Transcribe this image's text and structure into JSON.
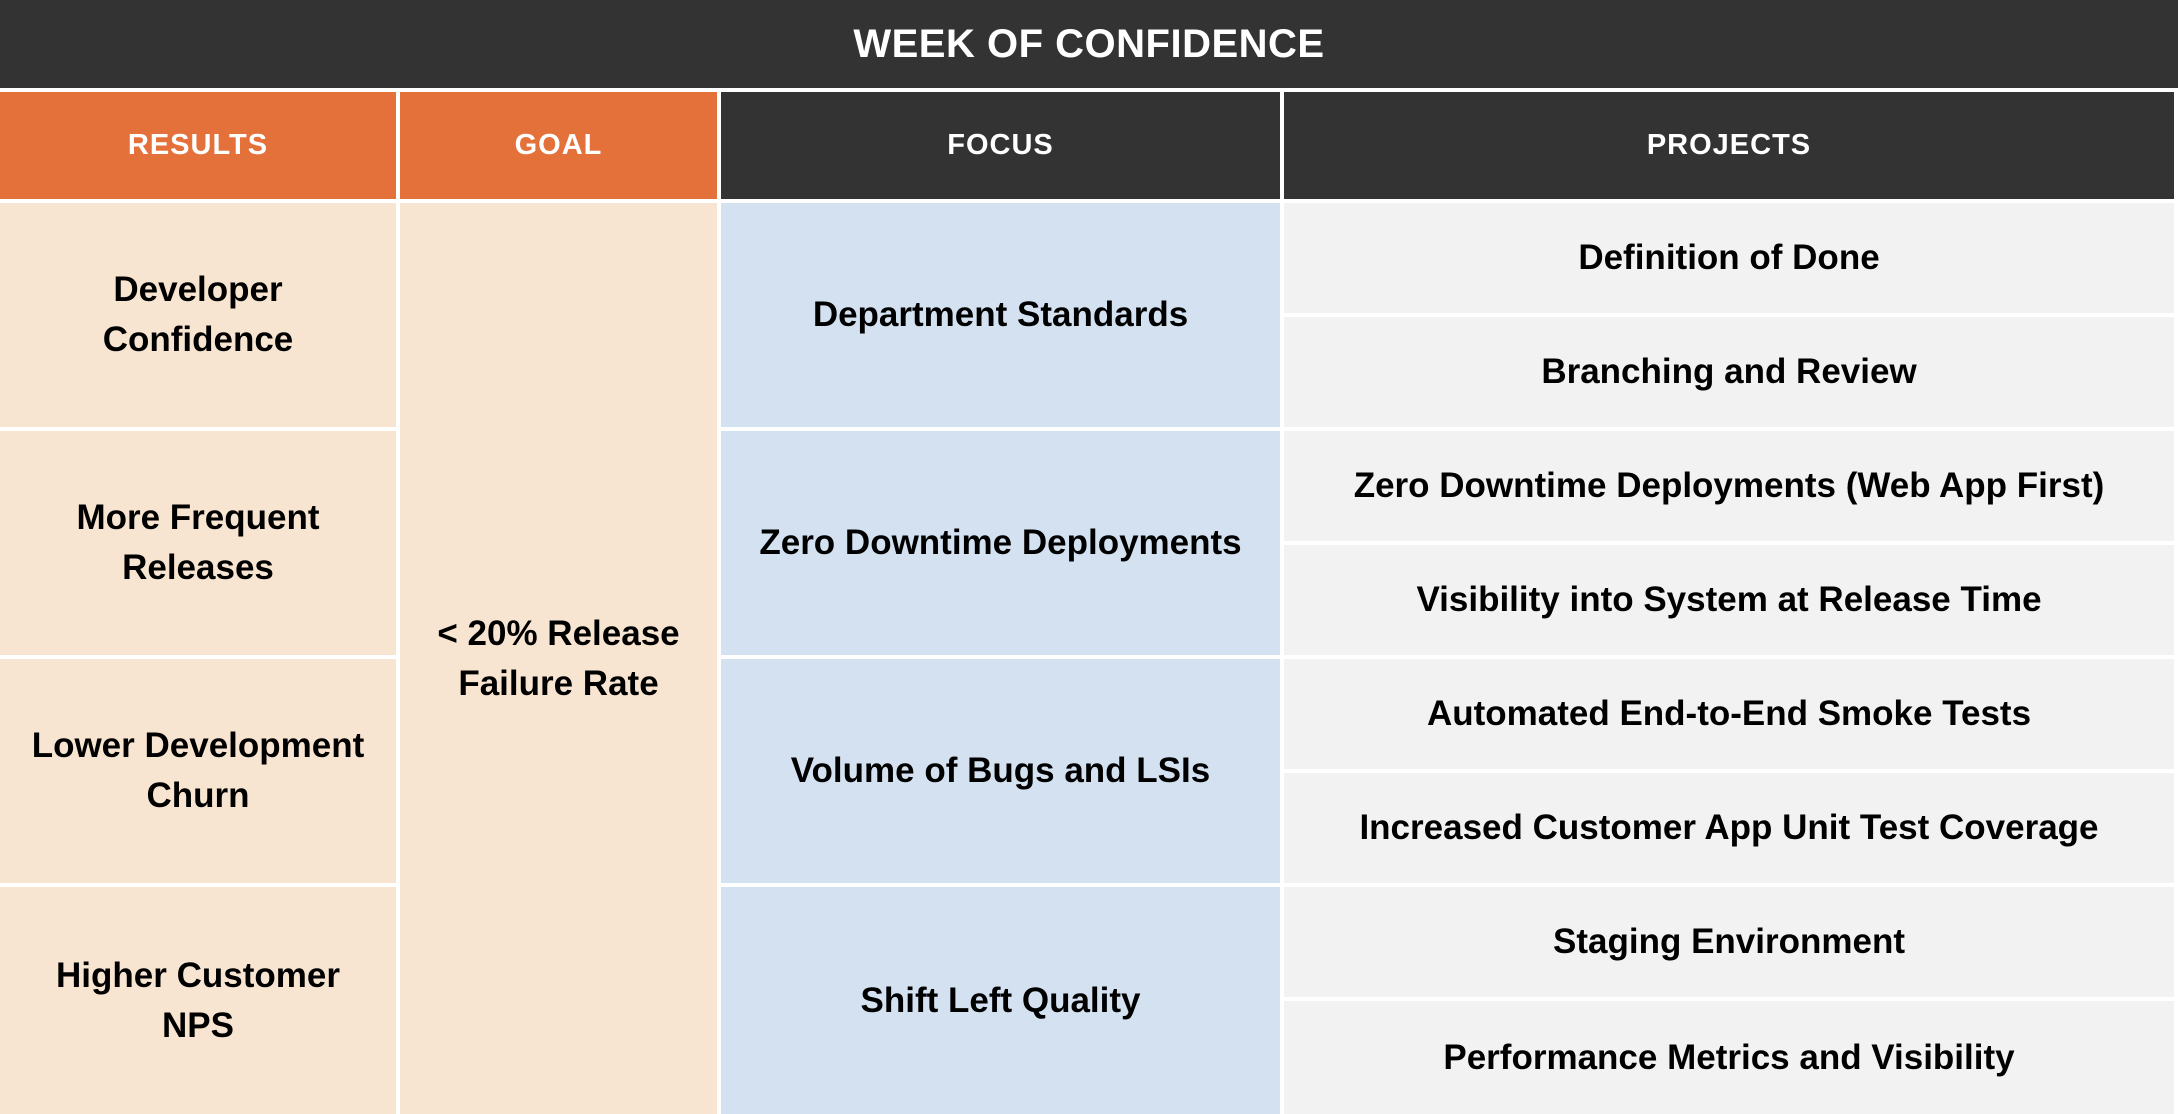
{
  "title": "WEEK OF CONFIDENCE",
  "headers": {
    "results": "RESULTS",
    "goal": "GOAL",
    "focus": "FOCUS",
    "projects": "PROJECTS"
  },
  "results": [
    "Developer Confidence",
    "More Frequent Releases",
    "Lower Development Churn",
    "Higher Customer NPS"
  ],
  "goal": "< 20% Release Failure Rate",
  "focus": [
    "Department Standards",
    "Zero Downtime Deployments",
    "Volume of Bugs and LSIs",
    "Shift Left Quality"
  ],
  "projects": [
    "Definition of Done",
    "Branching and Review",
    "Zero Downtime Deployments (Web App First)",
    "Visibility into System at Release Time",
    "Automated End-to-End Smoke Tests",
    "Increased Customer App Unit Test Coverage",
    "Staging Environment",
    "Performance Metrics and Visibility"
  ],
  "colors": {
    "dark": "#333333",
    "orange": "#e4703a",
    "peach": "#f8e5d1",
    "blue": "#d3e1f1",
    "gray": "#f2f2f2"
  }
}
